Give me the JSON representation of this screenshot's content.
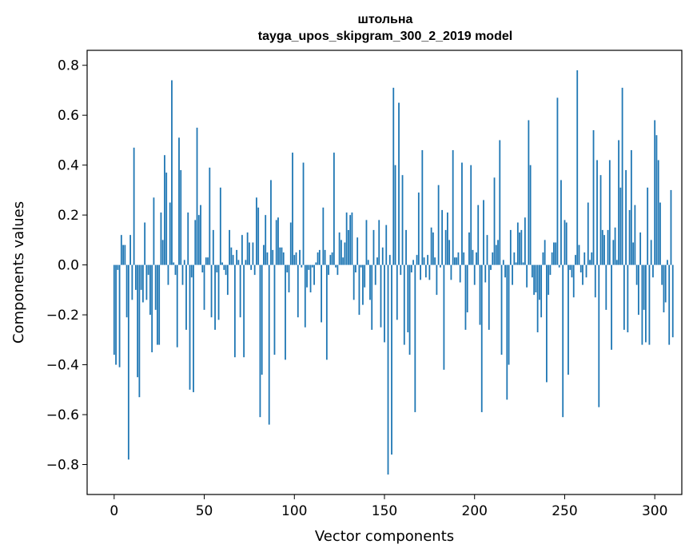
{
  "chart_data": {
    "type": "bar",
    "title": "штольна",
    "subtitle": "tayga_upos_skipgram_300_2_2019 model",
    "xlabel": "Vector components",
    "ylabel": "Components values",
    "xlim": [
      -15,
      315
    ],
    "ylim": [
      -0.92,
      0.86
    ],
    "xticks": [
      0,
      50,
      100,
      150,
      200,
      250,
      300
    ],
    "xtick_labels": [
      "0",
      "50",
      "100",
      "150",
      "200",
      "250",
      "300"
    ],
    "yticks": [
      -0.8,
      -0.6,
      -0.4,
      -0.2,
      0.0,
      0.2,
      0.4,
      0.6,
      0.8
    ],
    "ytick_labels": [
      "−0.8",
      "−0.6",
      "−0.4",
      "−0.2",
      "0.0",
      "0.2",
      "0.4",
      "0.6",
      "0.8"
    ],
    "bar_color": "#1f77b4",
    "grid": false,
    "values": [
      -0.36,
      -0.4,
      -0.02,
      -0.41,
      0.12,
      0.08,
      0.08,
      -0.21,
      -0.78,
      0.12,
      -0.14,
      0.47,
      -0.1,
      -0.45,
      -0.53,
      -0.1,
      -0.15,
      0.17,
      -0.14,
      -0.04,
      -0.2,
      -0.35,
      0.27,
      -0.18,
      -0.32,
      -0.32,
      0.21,
      0.1,
      0.44,
      0.37,
      -0.08,
      0.25,
      0.74,
      0.01,
      -0.04,
      -0.33,
      0.51,
      0.38,
      -0.08,
      0.02,
      -0.26,
      0.21,
      -0.5,
      -0.05,
      -0.51,
      0.18,
      0.55,
      0.2,
      0.24,
      -0.03,
      -0.18,
      0.03,
      0.03,
      0.39,
      -0.21,
      0.14,
      -0.26,
      -0.03,
      -0.22,
      0.31,
      0.01,
      -0.02,
      -0.04,
      -0.12,
      0.14,
      0.07,
      0.04,
      -0.37,
      0.06,
      0.02,
      -0.21,
      0.12,
      -0.37,
      0.02,
      0.13,
      0.09,
      -0.02,
      0.09,
      -0.04,
      0.27,
      0.23,
      -0.61,
      -0.44,
      0.08,
      0.2,
      0.05,
      -0.64,
      0.34,
      0.06,
      -0.36,
      0.18,
      0.19,
      0.07,
      0.07,
      0.05,
      -0.38,
      -0.03,
      -0.11,
      0.17,
      0.45,
      0.04,
      0.05,
      -0.21,
      0.06,
      -0.01,
      0.41,
      -0.25,
      -0.09,
      -0.02,
      -0.11,
      -0.01,
      -0.08,
      0.01,
      0.05,
      0.06,
      -0.23,
      0.23,
      0.06,
      -0.38,
      -0.04,
      0.04,
      0.05,
      0.45,
      -0.01,
      -0.04,
      0.13,
      0.1,
      0.03,
      0.09,
      0.21,
      0.14,
      0.2,
      0.21,
      -0.14,
      -0.03,
      0.11,
      -0.2,
      -0.01,
      -0.16,
      -0.09,
      0.18,
      0.02,
      -0.14,
      -0.26,
      0.14,
      -0.08,
      0.03,
      0.18,
      -0.25,
      0.07,
      -0.31,
      0.16,
      -0.84,
      0.04,
      -0.76,
      0.71,
      0.4,
      -0.22,
      0.65,
      -0.04,
      0.36,
      -0.32,
      0.14,
      -0.27,
      -0.36,
      -0.03,
      0.02,
      -0.59,
      0.04,
      0.29,
      -0.06,
      0.46,
      0.03,
      -0.05,
      0.04,
      -0.06,
      0.15,
      0.13,
      0.03,
      -0.12,
      0.32,
      -0.01,
      0.22,
      -0.42,
      0.14,
      0.21,
      0.1,
      -0.06,
      0.46,
      0.03,
      0.03,
      0.05,
      -0.07,
      0.41,
      0.05,
      -0.26,
      -0.19,
      0.13,
      0.4,
      0.06,
      -0.08,
      0.05,
      0.24,
      -0.24,
      -0.59,
      0.26,
      -0.07,
      0.12,
      -0.26,
      -0.02,
      0.05,
      0.35,
      0.08,
      0.1,
      0.5,
      -0.36,
      0.02,
      -0.05,
      -0.54,
      -0.4,
      0.14,
      -0.08,
      0.05,
      0.01,
      0.17,
      0.13,
      0.14,
      0.01,
      0.19,
      -0.09,
      0.58,
      0.4,
      -0.05,
      -0.12,
      -0.11,
      -0.27,
      -0.14,
      -0.21,
      0.05,
      0.1,
      -0.47,
      -0.12,
      -0.04,
      0.05,
      0.09,
      0.09,
      0.67,
      -0.01,
      0.34,
      -0.61,
      0.18,
      0.17,
      -0.44,
      -0.02,
      -0.05,
      -0.13,
      0.04,
      0.78,
      0.08,
      -0.03,
      -0.08,
      0.05,
      -0.05,
      0.25,
      0.02,
      0.05,
      0.54,
      -0.13,
      0.42,
      -0.57,
      0.36,
      0.14,
      0.12,
      -0.18,
      0.14,
      0.42,
      -0.34,
      0.1,
      0.15,
      0.02,
      0.5,
      0.31,
      0.71,
      -0.26,
      0.38,
      -0.27,
      0.22,
      0.46,
      0.09,
      0.24,
      -0.08,
      -0.2,
      0.13,
      -0.32,
      -0.18,
      -0.31,
      0.31,
      -0.32,
      0.1,
      -0.05,
      0.58,
      0.52,
      0.42,
      0.25,
      -0.08,
      -0.19,
      -0.15,
      0.02,
      -0.32,
      0.3,
      -0.29
    ]
  }
}
